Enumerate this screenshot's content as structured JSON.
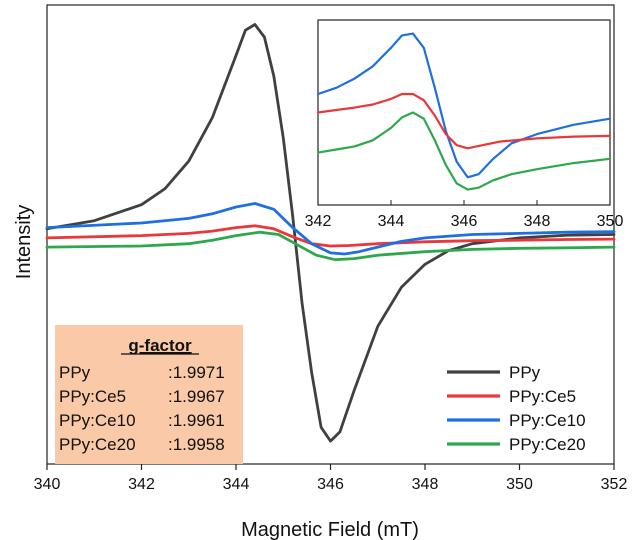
{
  "chart_data": {
    "type": "line",
    "xlabel": "Magnetic Field (mT)",
    "ylabel": "Intensity",
    "xlim": [
      340,
      352
    ],
    "ylim": [
      -10,
      10
    ],
    "xticks": [
      "340",
      "342",
      "344",
      "346",
      "348",
      "350",
      "352"
    ],
    "legend_position": "bottom-right",
    "series": [
      {
        "name": "PPy",
        "color": "#404040",
        "x": [
          340,
          341,
          342,
          342.5,
          343,
          343.5,
          344,
          344.2,
          344.4,
          344.6,
          344.8,
          345,
          345.2,
          345.4,
          345.6,
          345.8,
          346,
          346.2,
          346.5,
          347,
          347.5,
          348,
          348.5,
          349,
          350,
          351,
          352
        ],
        "y": [
          0.25,
          0.6,
          1.3,
          2.0,
          3.2,
          5.1,
          7.8,
          8.9,
          9.15,
          8.6,
          6.9,
          4.2,
          0.8,
          -3.0,
          -6.0,
          -8.4,
          -9.0,
          -8.6,
          -6.8,
          -4.0,
          -2.3,
          -1.3,
          -0.7,
          -0.4,
          -0.15,
          -0.03,
          0.0
        ]
      },
      {
        "name": "PPy:Ce5",
        "color": "#e8383b",
        "x": [
          340,
          342,
          343,
          343.5,
          344,
          344.4,
          344.8,
          345.2,
          345.6,
          346,
          346.4,
          347,
          348,
          349,
          350,
          351,
          352
        ],
        "y": [
          -0.15,
          -0.05,
          0.05,
          0.15,
          0.3,
          0.38,
          0.25,
          -0.1,
          -0.4,
          -0.5,
          -0.48,
          -0.4,
          -0.32,
          -0.27,
          -0.25,
          -0.22,
          -0.2
        ]
      },
      {
        "name": "PPy:Ce10",
        "color": "#1f6fe0",
        "x": [
          340,
          342,
          343,
          343.5,
          344,
          344.4,
          344.8,
          345.2,
          345.6,
          346,
          346.3,
          346.6,
          347,
          347.5,
          348,
          349,
          350,
          351,
          352
        ],
        "y": [
          0.3,
          0.5,
          0.7,
          0.9,
          1.2,
          1.35,
          1.1,
          0.3,
          -0.4,
          -0.8,
          -0.85,
          -0.75,
          -0.55,
          -0.3,
          -0.15,
          0.0,
          0.05,
          0.1,
          0.12
        ]
      },
      {
        "name": "PPy:Ce20",
        "color": "#2ea84c",
        "x": [
          340,
          342,
          343,
          343.5,
          344,
          344.5,
          344.9,
          345.3,
          345.7,
          346.1,
          346.5,
          347,
          348,
          349,
          350,
          351,
          352
        ],
        "y": [
          -0.55,
          -0.5,
          -0.4,
          -0.25,
          -0.05,
          0.1,
          0.0,
          -0.45,
          -0.9,
          -1.1,
          -1.05,
          -0.9,
          -0.75,
          -0.65,
          -0.6,
          -0.58,
          -0.55
        ]
      }
    ],
    "inset": {
      "xlim": [
        342,
        350
      ],
      "xticks": [
        "342",
        "344",
        "346",
        "348",
        "350"
      ],
      "ylim": [
        -1.3,
        1.7
      ],
      "series": [
        {
          "name": "PPy:Ce10",
          "color": "#1f6fe0",
          "x": [
            342,
            342.5,
            343,
            343.5,
            344,
            344.3,
            344.6,
            344.9,
            345.2,
            345.5,
            345.8,
            346.1,
            346.4,
            346.8,
            347.3,
            348,
            349,
            350
          ],
          "y": [
            0.5,
            0.6,
            0.75,
            0.95,
            1.25,
            1.45,
            1.48,
            1.25,
            0.6,
            -0.1,
            -0.6,
            -0.85,
            -0.8,
            -0.55,
            -0.3,
            -0.15,
            0.0,
            0.1
          ]
        },
        {
          "name": "PPy:Ce5",
          "color": "#e8383b",
          "x": [
            342,
            342.5,
            343,
            343.5,
            344,
            344.3,
            344.6,
            344.9,
            345.2,
            345.5,
            345.8,
            346.1,
            346.5,
            347,
            348,
            349,
            350
          ],
          "y": [
            0.2,
            0.24,
            0.28,
            0.33,
            0.42,
            0.5,
            0.5,
            0.4,
            0.15,
            -0.15,
            -0.33,
            -0.38,
            -0.33,
            -0.27,
            -0.22,
            -0.19,
            -0.18
          ]
        },
        {
          "name": "PPy:Ce20",
          "color": "#2ea84c",
          "x": [
            342,
            342.5,
            343,
            343.5,
            344,
            344.3,
            344.6,
            344.9,
            345.2,
            345.5,
            345.8,
            346.1,
            346.4,
            346.8,
            347.3,
            348,
            349,
            350
          ],
          "y": [
            -0.45,
            -0.4,
            -0.35,
            -0.25,
            -0.05,
            0.12,
            0.2,
            0.1,
            -0.25,
            -0.65,
            -0.95,
            -1.05,
            -1.02,
            -0.9,
            -0.8,
            -0.72,
            -0.62,
            -0.55
          ]
        }
      ]
    },
    "gfactor_box": {
      "title": "g-factor",
      "rows": [
        {
          "sample": "PPy",
          "value": ":1.9971"
        },
        {
          "sample": "PPy:Ce5",
          "value": ":1.9967"
        },
        {
          "sample": "PPy:Ce10",
          "value": ":1.9961"
        },
        {
          "sample": "PPy:Ce20",
          "value": ":1.9958"
        }
      ],
      "bg_color": "#f9c9a8"
    }
  }
}
